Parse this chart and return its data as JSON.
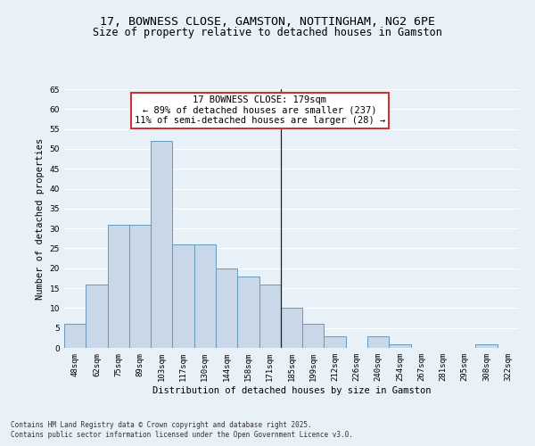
{
  "title": "17, BOWNESS CLOSE, GAMSTON, NOTTINGHAM, NG2 6PE",
  "subtitle": "Size of property relative to detached houses in Gamston",
  "xlabel": "Distribution of detached houses by size in Gamston",
  "ylabel": "Number of detached properties",
  "footer_line1": "Contains HM Land Registry data © Crown copyright and database right 2025.",
  "footer_line2": "Contains public sector information licensed under the Open Government Licence v3.0.",
  "bins": [
    "48sqm",
    "62sqm",
    "75sqm",
    "89sqm",
    "103sqm",
    "117sqm",
    "130sqm",
    "144sqm",
    "158sqm",
    "171sqm",
    "185sqm",
    "199sqm",
    "212sqm",
    "226sqm",
    "240sqm",
    "254sqm",
    "267sqm",
    "281sqm",
    "295sqm",
    "308sqm",
    "322sqm"
  ],
  "bar_values": [
    6,
    16,
    31,
    31,
    52,
    26,
    26,
    20,
    18,
    16,
    10,
    6,
    3,
    0,
    3,
    1,
    0,
    0,
    0,
    1,
    0
  ],
  "bar_color": "#c8d8e8",
  "bar_edge_color": "#6699bb",
  "vline_label": "17 BOWNESS CLOSE: 179sqm",
  "annotation_line1": "← 89% of detached houses are smaller (237)",
  "annotation_line2": "11% of semi-detached houses are larger (28) →",
  "ylim": [
    0,
    65
  ],
  "yticks": [
    0,
    5,
    10,
    15,
    20,
    25,
    30,
    35,
    40,
    45,
    50,
    55,
    60,
    65
  ],
  "bg_color": "#e8f0f8",
  "grid_color": "#ffffff",
  "title_fontsize": 9.5,
  "subtitle_fontsize": 8.5,
  "axis_label_fontsize": 7.5,
  "tick_fontsize": 6.5,
  "annotation_fontsize": 7.5,
  "annotation_box_color": "#ffffff",
  "annotation_border_color": "#cc3333",
  "vline_color": "#222222",
  "vline_x": 9.5,
  "footer_fontsize": 5.5
}
